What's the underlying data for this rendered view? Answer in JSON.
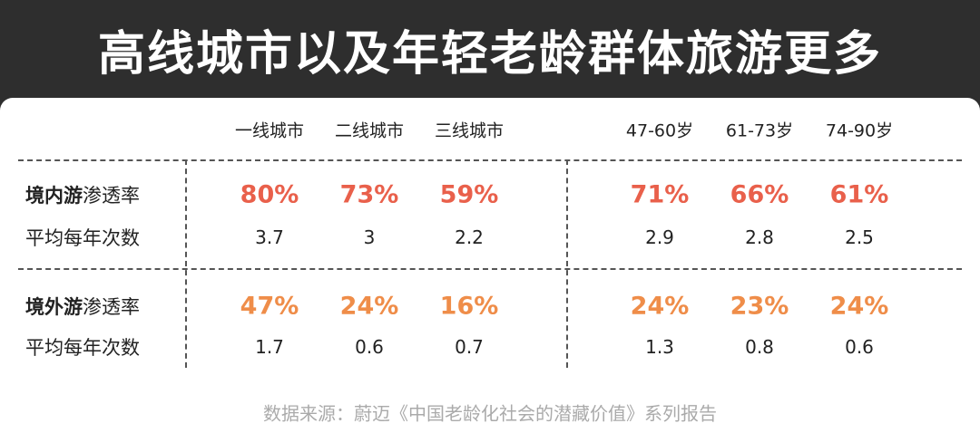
{
  "header": {
    "title": "高线城市以及年轻老龄群体旅游更多"
  },
  "table": {
    "columns": [
      "一线城市",
      "二线城市",
      "三线城市",
      "47-60岁",
      "61-73岁",
      "74-90岁"
    ],
    "sections": [
      {
        "name": "境内游",
        "rows": [
          {
            "label": "渗透率",
            "cells": [
              "80%",
              "73%",
              "59%",
              "71%",
              "66%",
              "61%"
            ]
          },
          {
            "label": "平均每年次数",
            "cells": [
              "3.7",
              "3",
              "2.2",
              "2.9",
              "2.8",
              "2.5"
            ]
          }
        ]
      },
      {
        "name": "境外游",
        "rows": [
          {
            "label": "渗透率",
            "cells": [
              "47%",
              "24%",
              "16%",
              "24%",
              "23%",
              "24%"
            ]
          },
          {
            "label": "平均每年次数",
            "cells": [
              "1.7",
              "0.6",
              "0.7",
              "1.3",
              "0.8",
              "0.6"
            ]
          }
        ]
      }
    ]
  },
  "footer": {
    "source": "数据来源：蔚迈《中国老龄化社会的潜藏价值》系列报告"
  }
}
